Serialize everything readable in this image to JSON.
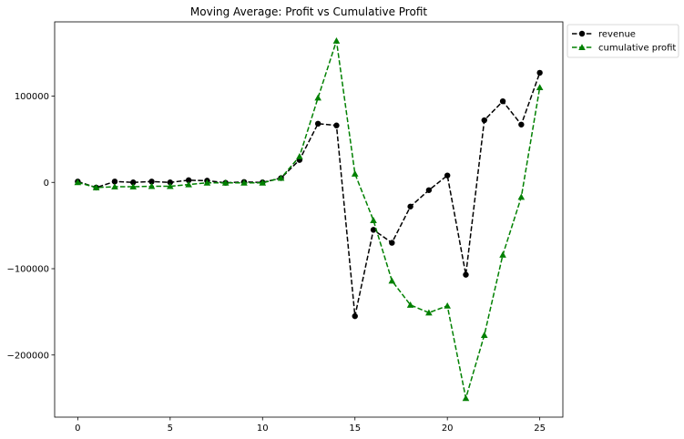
{
  "chart_data": {
    "type": "line",
    "title": "Moving Average: Profit vs Cumulative Profit",
    "xlabel": "",
    "ylabel": "",
    "x": [
      0,
      1,
      2,
      3,
      4,
      5,
      6,
      7,
      8,
      9,
      10,
      11,
      12,
      13,
      14,
      15,
      16,
      17,
      18,
      19,
      20,
      21,
      22,
      23,
      24,
      25
    ],
    "xlim": [
      -1.25,
      26.25
    ],
    "ylim": [
      -272000,
      186000
    ],
    "xticks": [
      0,
      5,
      10,
      15,
      20,
      25
    ],
    "yticks": [
      -200000,
      -100000,
      0,
      100000
    ],
    "ytick_labels": [
      "−200000",
      "−100000",
      "0",
      "100000"
    ],
    "grid": false,
    "legend_position": "outside-top-right",
    "series": [
      {
        "name": "revenue",
        "color": "#000000",
        "marker": "circle",
        "linestyle": "dashed",
        "values": [
          1000,
          -6000,
          1000,
          0,
          1000,
          0,
          2500,
          2000,
          -500,
          500,
          0,
          5000,
          26000,
          68000,
          66000,
          -155000,
          -55000,
          -70000,
          -28000,
          -9000,
          8000,
          -107000,
          72000,
          94000,
          67000,
          127000
        ]
      },
      {
        "name": "cumulative profit",
        "color": "#008000",
        "marker": "triangle",
        "linestyle": "dashed",
        "values": [
          0,
          -6000,
          -5000,
          -5000,
          -4500,
          -4500,
          -2500,
          -500,
          -500,
          -500,
          -500,
          5000,
          30000,
          98000,
          164000,
          10000,
          -44000,
          -114000,
          -142000,
          -151000,
          -143000,
          -250000,
          -177000,
          -84000,
          -17000,
          110000
        ]
      }
    ]
  }
}
